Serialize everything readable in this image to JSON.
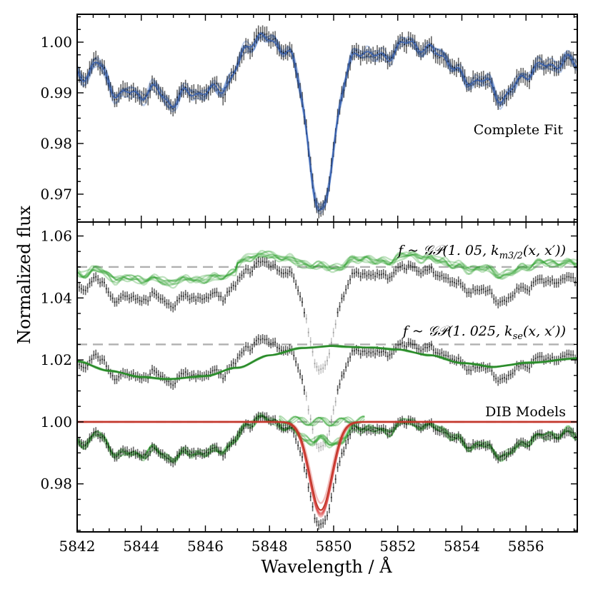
{
  "chart_data": {
    "type": "line",
    "xlabel": "Wavelength / Å",
    "ylabel": "Normalized flux",
    "xlim": [
      5842,
      5857.6
    ],
    "x_ticks": [
      "5842",
      "5844",
      "5846",
      "5848",
      "5850",
      "5852",
      "5854",
      "5856"
    ],
    "top_panel": {
      "label": "Complete Fit",
      "ylim": [
        0.9645,
        1.0055
      ],
      "y_ticks": [
        "0.97",
        "0.98",
        "0.99",
        "1.00"
      ],
      "series": [
        {
          "name": "data with errorbars",
          "color": "#000000"
        },
        {
          "name": "model samples",
          "color": "#4472c4"
        }
      ]
    },
    "bottom_panel": {
      "ylim": [
        0.9645,
        1.0645
      ],
      "y_ticks": [
        "0.98",
        "1.00",
        "1.02",
        "1.04",
        "1.06"
      ],
      "annotations": [
        {
          "name": "matern",
          "prefix": "f ~ ",
          "gp": "𝒢𝒫",
          "args": "(1. 05, ",
          "kernel": "k",
          "sub": "m3/2",
          "tail": "(x, x′))",
          "offset": 1.05
        },
        {
          "name": "sqexp",
          "prefix": "f ~ ",
          "gp": "𝒢𝒫",
          "args": "(1. 025, ",
          "kernel": "k",
          "sub": "se",
          "tail": "(x, x′))",
          "offset": 1.025
        },
        {
          "name": "dib",
          "label": "DIB Models",
          "offset": 1.0
        }
      ],
      "dashed_levels": [
        1.05,
        1.025,
        1.0
      ],
      "colors": {
        "gp": "#2ca02c",
        "dib": "#d62728",
        "dashed": "#b0b0b0",
        "data": "#000000"
      }
    },
    "spectrum": {
      "baseline": 0.9935,
      "errorbar_halfwidth": 0.0015,
      "bumps": [
        {
          "center": 5842.6,
          "amp": 0.0025,
          "width": 0.15
        },
        {
          "center": 5843.3,
          "amp": -0.0025,
          "width": 0.25
        },
        {
          "center": 5844.0,
          "amp": -0.0035,
          "width": 0.5
        },
        {
          "center": 5845.0,
          "amp": -0.0045,
          "width": 0.3
        },
        {
          "center": 5846.0,
          "amp": -0.0035,
          "width": 0.5
        },
        {
          "center": 5846.9,
          "amp": -0.001,
          "width": 0.3
        },
        {
          "center": 5847.4,
          "amp": 0.004,
          "width": 0.3
        },
        {
          "center": 5848.1,
          "amp": 0.0062,
          "width": 0.6
        },
        {
          "center": 5850.8,
          "amp": 0.004,
          "width": 0.25
        },
        {
          "center": 5851.5,
          "amp": 0.003,
          "width": 0.5
        },
        {
          "center": 5852.5,
          "amp": 0.006,
          "width": 0.45
        },
        {
          "center": 5853.4,
          "amp": 0.0035,
          "width": 0.3
        },
        {
          "center": 5854.1,
          "amp": -0.001,
          "width": 0.4
        },
        {
          "center": 5855.3,
          "amp": -0.0045,
          "width": 0.35
        },
        {
          "center": 5856.3,
          "amp": 0.001,
          "width": 0.5
        },
        {
          "center": 5857.3,
          "amp": 0.0025,
          "width": 0.5
        }
      ],
      "dib_line": {
        "center": 5849.6,
        "depth": 0.0285,
        "sigma": 0.34
      },
      "smooth_gp": [
        [
          5842.0,
          1.0195
        ],
        [
          5843.0,
          1.0165
        ],
        [
          5844.0,
          1.0145
        ],
        [
          5844.8,
          1.0138
        ],
        [
          5846.0,
          1.0148
        ],
        [
          5847.0,
          1.0175
        ],
        [
          5848.0,
          1.0215
        ],
        [
          5849.0,
          1.0238
        ],
        [
          5850.0,
          1.0245
        ],
        [
          5851.0,
          1.024
        ],
        [
          5852.0,
          1.0234
        ],
        [
          5853.0,
          1.0215
        ],
        [
          5854.0,
          1.019
        ],
        [
          5855.0,
          1.0178
        ],
        [
          5856.0,
          1.019
        ],
        [
          5857.6,
          1.0205
        ]
      ]
    }
  }
}
